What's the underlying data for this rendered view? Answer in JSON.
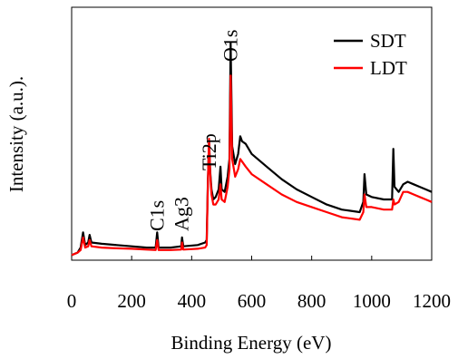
{
  "chart_data": {
    "type": "line",
    "title": "",
    "xlabel": "Binding Energy (eV)",
    "ylabel": "Intensity (a.u.).",
    "xlim": [
      0,
      1200
    ],
    "xticks": [
      0,
      200,
      400,
      600,
      800,
      1000,
      1200
    ],
    "ylim": [
      0,
      1
    ],
    "y_ticks_shown": false,
    "grid": false,
    "legend_position": "top-right",
    "annotations": [
      {
        "text": "C1s",
        "x": 285
      },
      {
        "text": "Ag3",
        "x": 368
      },
      {
        "text": "Ti2p",
        "x": 459
      },
      {
        "text": "O1s",
        "x": 530
      }
    ],
    "series": [
      {
        "name": "SDT",
        "color": "#000000",
        "points": [
          [
            0,
            0.02
          ],
          [
            20,
            0.03
          ],
          [
            30,
            0.05
          ],
          [
            38,
            0.11
          ],
          [
            45,
            0.06
          ],
          [
            55,
            0.07
          ],
          [
            60,
            0.1
          ],
          [
            66,
            0.07
          ],
          [
            100,
            0.065
          ],
          [
            150,
            0.06
          ],
          [
            200,
            0.055
          ],
          [
            250,
            0.05
          ],
          [
            280,
            0.05
          ],
          [
            285,
            0.11
          ],
          [
            290,
            0.05
          ],
          [
            330,
            0.05
          ],
          [
            365,
            0.055
          ],
          [
            368,
            0.09
          ],
          [
            372,
            0.055
          ],
          [
            420,
            0.06
          ],
          [
            445,
            0.07
          ],
          [
            450,
            0.08
          ],
          [
            454,
            0.31
          ],
          [
            458,
            0.47
          ],
          [
            462,
            0.35
          ],
          [
            466,
            0.28
          ],
          [
            472,
            0.24
          ],
          [
            480,
            0.25
          ],
          [
            490,
            0.28
          ],
          [
            496,
            0.37
          ],
          [
            500,
            0.28
          ],
          [
            510,
            0.27
          ],
          [
            520,
            0.33
          ],
          [
            526,
            0.4
          ],
          [
            530,
            0.86
          ],
          [
            535,
            0.45
          ],
          [
            545,
            0.38
          ],
          [
            555,
            0.42
          ],
          [
            562,
            0.49
          ],
          [
            568,
            0.47
          ],
          [
            580,
            0.46
          ],
          [
            600,
            0.42
          ],
          [
            650,
            0.37
          ],
          [
            700,
            0.32
          ],
          [
            750,
            0.28
          ],
          [
            800,
            0.25
          ],
          [
            850,
            0.22
          ],
          [
            900,
            0.2
          ],
          [
            960,
            0.19
          ],
          [
            972,
            0.23
          ],
          [
            976,
            0.34
          ],
          [
            982,
            0.26
          ],
          [
            1000,
            0.25
          ],
          [
            1040,
            0.24
          ],
          [
            1068,
            0.24
          ],
          [
            1072,
            0.44
          ],
          [
            1076,
            0.29
          ],
          [
            1090,
            0.27
          ],
          [
            1105,
            0.3
          ],
          [
            1120,
            0.31
          ],
          [
            1140,
            0.3
          ],
          [
            1160,
            0.29
          ],
          [
            1180,
            0.28
          ],
          [
            1200,
            0.27
          ]
        ]
      },
      {
        "name": "LDT",
        "color": "#ff0000",
        "points": [
          [
            0,
            0.02
          ],
          [
            20,
            0.03
          ],
          [
            30,
            0.04
          ],
          [
            38,
            0.09
          ],
          [
            45,
            0.05
          ],
          [
            55,
            0.055
          ],
          [
            60,
            0.08
          ],
          [
            66,
            0.055
          ],
          [
            100,
            0.05
          ],
          [
            150,
            0.047
          ],
          [
            200,
            0.045
          ],
          [
            250,
            0.042
          ],
          [
            280,
            0.04
          ],
          [
            285,
            0.08
          ],
          [
            290,
            0.04
          ],
          [
            330,
            0.04
          ],
          [
            365,
            0.042
          ],
          [
            368,
            0.07
          ],
          [
            372,
            0.042
          ],
          [
            420,
            0.045
          ],
          [
            445,
            0.05
          ],
          [
            450,
            0.06
          ],
          [
            454,
            0.3
          ],
          [
            458,
            0.48
          ],
          [
            462,
            0.34
          ],
          [
            466,
            0.26
          ],
          [
            472,
            0.22
          ],
          [
            480,
            0.22
          ],
          [
            490,
            0.24
          ],
          [
            496,
            0.3
          ],
          [
            500,
            0.24
          ],
          [
            510,
            0.23
          ],
          [
            520,
            0.29
          ],
          [
            526,
            0.36
          ],
          [
            530,
            0.73
          ],
          [
            535,
            0.4
          ],
          [
            545,
            0.33
          ],
          [
            555,
            0.36
          ],
          [
            562,
            0.4
          ],
          [
            568,
            0.39
          ],
          [
            580,
            0.37
          ],
          [
            600,
            0.34
          ],
          [
            650,
            0.3
          ],
          [
            700,
            0.26
          ],
          [
            750,
            0.23
          ],
          [
            800,
            0.21
          ],
          [
            850,
            0.19
          ],
          [
            900,
            0.17
          ],
          [
            960,
            0.16
          ],
          [
            972,
            0.19
          ],
          [
            976,
            0.26
          ],
          [
            982,
            0.21
          ],
          [
            1000,
            0.21
          ],
          [
            1040,
            0.2
          ],
          [
            1068,
            0.2
          ],
          [
            1072,
            0.24
          ],
          [
            1076,
            0.22
          ],
          [
            1090,
            0.23
          ],
          [
            1105,
            0.27
          ],
          [
            1120,
            0.27
          ],
          [
            1140,
            0.26
          ],
          [
            1160,
            0.25
          ],
          [
            1180,
            0.24
          ],
          [
            1200,
            0.23
          ]
        ]
      }
    ]
  }
}
